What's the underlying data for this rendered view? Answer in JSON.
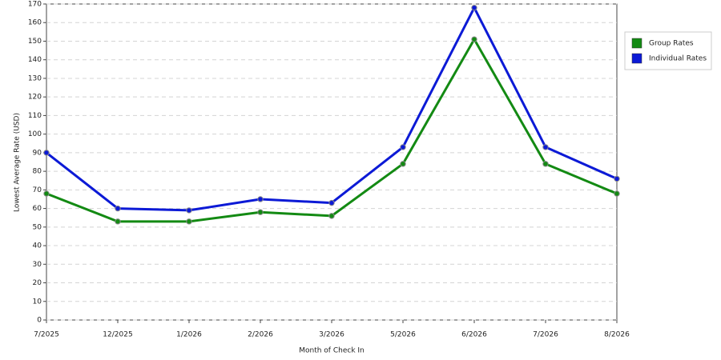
{
  "chart_data": {
    "type": "line",
    "x_label": "Month of Check In",
    "y_label": "Lowest Average Rate (USD)",
    "categories": [
      "7/2025",
      "12/2025",
      "1/2026",
      "2/2026",
      "3/2026",
      "5/2026",
      "6/2026",
      "7/2026",
      "8/2026"
    ],
    "series": [
      {
        "name": "Group Rates",
        "color": "#138a13",
        "values": [
          68,
          53,
          53,
          58,
          56,
          84,
          151,
          84,
          68
        ]
      },
      {
        "name": "Individual Rates",
        "color": "#0c1ad6",
        "values": [
          90,
          60,
          59,
          65,
          63,
          93,
          168,
          93,
          76
        ]
      }
    ],
    "ylim": [
      0,
      170
    ],
    "yticks": [
      0,
      10,
      20,
      30,
      40,
      50,
      60,
      70,
      80,
      90,
      100,
      110,
      120,
      130,
      140,
      150,
      160,
      170
    ],
    "grid": true,
    "legend": "right"
  }
}
